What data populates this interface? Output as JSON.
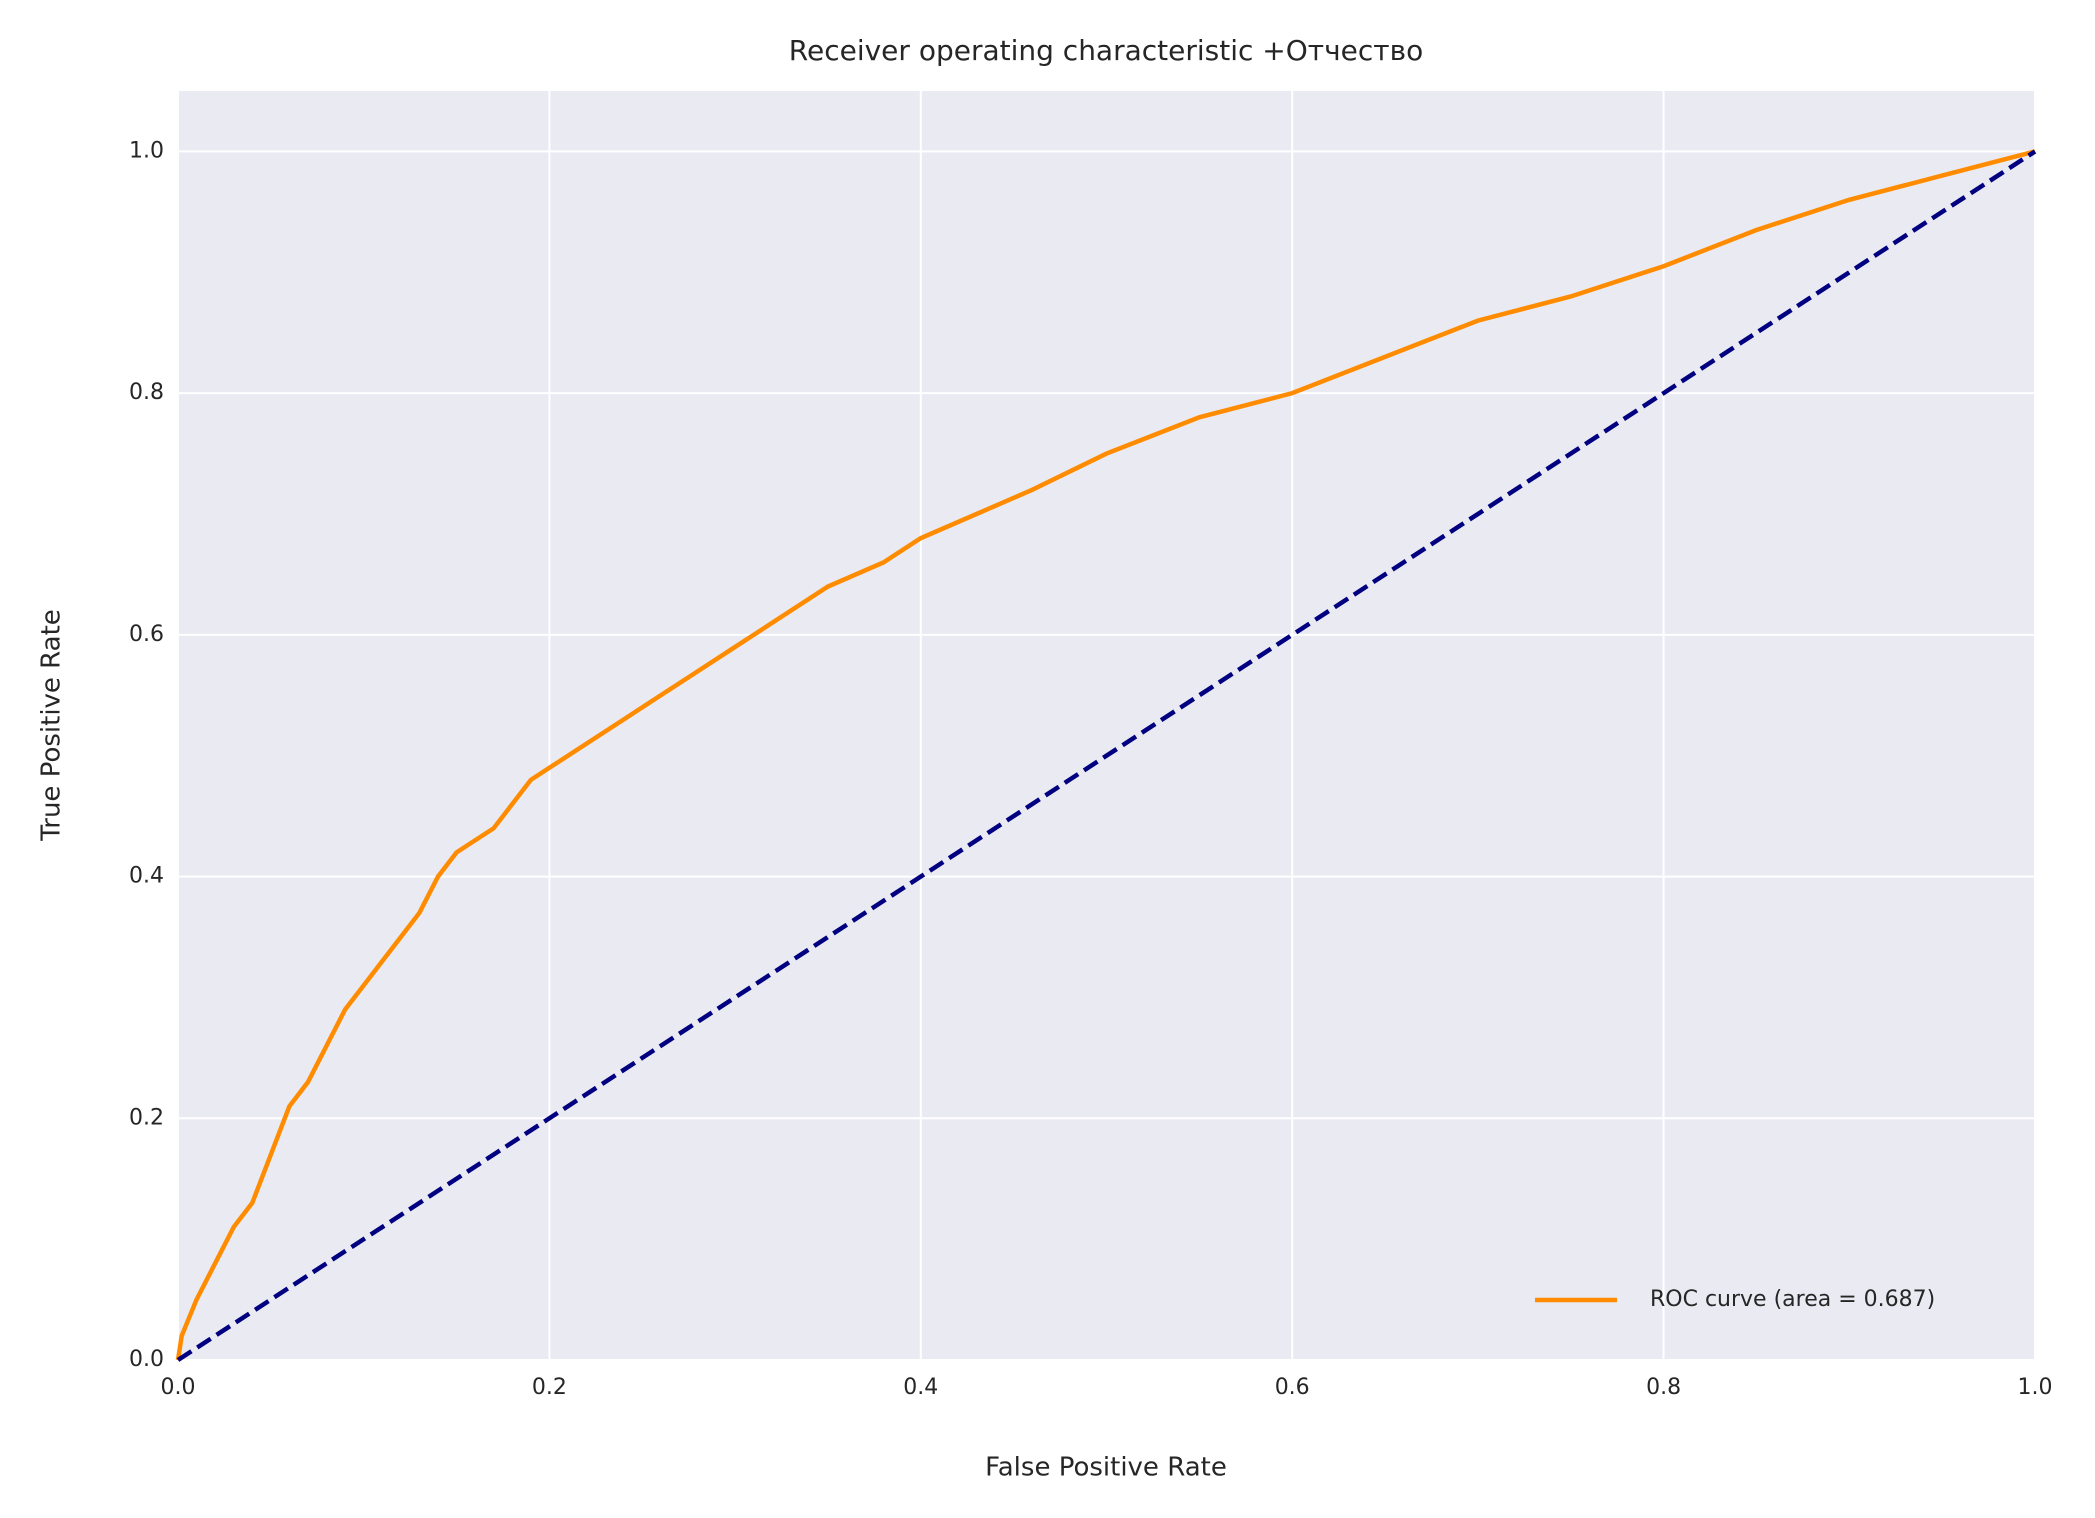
{
  "chart_data": {
    "type": "line",
    "title": "Receiver operating characteristic +Отчество",
    "xlabel": "False Positive Rate",
    "ylabel": "True Positive Rate",
    "xlim": [
      0,
      1
    ],
    "ylim": [
      0,
      1.05
    ],
    "xticks": [
      {
        "value": 0,
        "label": "0.0"
      },
      0.2,
      0.4,
      0.6,
      0.8,
      {
        "value": 1,
        "label": "1.0"
      }
    ],
    "yticks": [
      {
        "value": 0,
        "label": "0.0"
      },
      0.2,
      0.4,
      0.6,
      0.8,
      {
        "value": 1,
        "label": "1.0"
      }
    ],
    "grid": true,
    "legend": "lower right",
    "series": [
      {
        "name": "ROC curve (area = 0.687)",
        "color": "#ff8c00",
        "linestyle": "solid",
        "x": [
          0,
          0.002,
          0.01,
          0.02,
          0.03,
          0.04,
          0.05,
          0.06,
          0.07,
          0.08,
          0.09,
          0.1,
          0.11,
          0.12,
          0.13,
          0.14,
          0.15,
          0.17,
          0.19,
          0.2,
          0.22,
          0.24,
          0.26,
          0.28,
          0.3,
          0.32,
          0.35,
          0.38,
          0.4,
          0.43,
          0.46,
          0.5,
          0.55,
          0.6,
          0.65,
          0.7,
          0.75,
          0.8,
          0.85,
          0.9,
          0.95,
          1
        ],
        "values": [
          0,
          0.02,
          0.05,
          0.08,
          0.11,
          0.13,
          0.17,
          0.21,
          0.23,
          0.26,
          0.29,
          0.31,
          0.33,
          0.35,
          0.37,
          0.4,
          0.42,
          0.44,
          0.48,
          0.49,
          0.51,
          0.53,
          0.55,
          0.57,
          0.59,
          0.61,
          0.64,
          0.66,
          0.68,
          0.7,
          0.72,
          0.75,
          0.78,
          0.8,
          0.83,
          0.86,
          0.88,
          0.905,
          0.935,
          0.96,
          0.98,
          1
        ]
      },
      {
        "color": "#000080",
        "linestyle": "dashed",
        "x": [
          0,
          1
        ],
        "values": [
          0,
          1
        ]
      }
    ]
  }
}
